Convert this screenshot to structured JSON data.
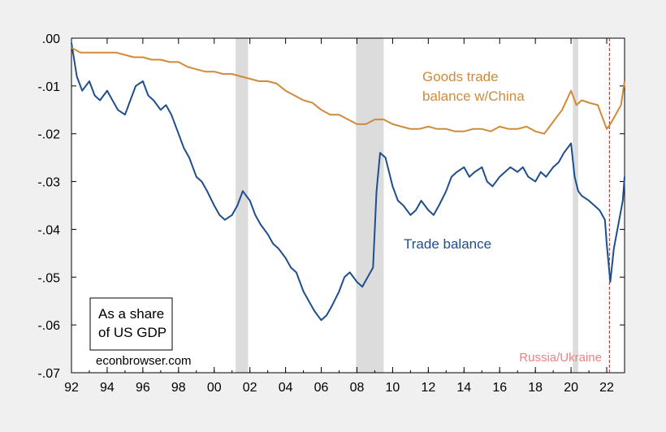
{
  "chart_data": {
    "type": "line",
    "title": "",
    "xlabel": "",
    "ylabel": "",
    "xlim": [
      1992.0,
      2023.0
    ],
    "ylim": [
      -0.07,
      0.0
    ],
    "x_tick_labels": [
      "92",
      "94",
      "96",
      "98",
      "00",
      "02",
      "04",
      "06",
      "08",
      "10",
      "12",
      "14",
      "16",
      "18",
      "20",
      "22"
    ],
    "x_tick_values": [
      1992,
      1994,
      1996,
      1998,
      2000,
      2002,
      2004,
      2006,
      2008,
      2010,
      2012,
      2014,
      2016,
      2018,
      2020,
      2022
    ],
    "y_tick_labels": [
      ".00",
      "-.01",
      "-.02",
      "-.03",
      "-.04",
      "-.05",
      "-.06",
      "-.07"
    ],
    "y_tick_values": [
      0.0,
      -0.01,
      -0.02,
      -0.03,
      -0.04,
      -0.05,
      -0.06,
      -0.07
    ],
    "recessions": [
      [
        2001.2,
        2001.9
      ],
      [
        2007.95,
        2009.5
      ],
      [
        2020.1,
        2020.4
      ]
    ],
    "event_line": {
      "x": 2022.15,
      "label": "Russia/Ukraine",
      "color": "#b22222"
    },
    "series": [
      {
        "name": "Trade balance",
        "label": "Trade balance",
        "color": "#1f4e8c",
        "x": [
          1992.0,
          1992.3,
          1992.6,
          1993.0,
          1993.3,
          1993.6,
          1994.0,
          1994.3,
          1994.6,
          1995.0,
          1995.3,
          1995.6,
          1996.0,
          1996.3,
          1996.6,
          1997.0,
          1997.3,
          1997.6,
          1998.0,
          1998.3,
          1998.6,
          1999.0,
          1999.3,
          1999.6,
          2000.0,
          2000.3,
          2000.6,
          2001.0,
          2001.3,
          2001.6,
          2002.0,
          2002.3,
          2002.6,
          2003.0,
          2003.3,
          2003.6,
          2004.0,
          2004.3,
          2004.6,
          2005.0,
          2005.3,
          2005.6,
          2006.0,
          2006.3,
          2006.6,
          2007.0,
          2007.3,
          2007.6,
          2008.0,
          2008.3,
          2008.6,
          2008.9,
          2009.1,
          2009.3,
          2009.6,
          2010.0,
          2010.3,
          2010.6,
          2011.0,
          2011.3,
          2011.6,
          2012.0,
          2012.3,
          2012.6,
          2013.0,
          2013.3,
          2013.6,
          2014.0,
          2014.3,
          2014.6,
          2015.0,
          2015.3,
          2015.6,
          2016.0,
          2016.3,
          2016.6,
          2017.0,
          2017.3,
          2017.6,
          2018.0,
          2018.3,
          2018.6,
          2019.0,
          2019.3,
          2019.6,
          2020.0,
          2020.2,
          2020.4,
          2020.6,
          2021.0,
          2021.3,
          2021.6,
          2021.9,
          2022.0,
          2022.2,
          2022.4,
          2022.7,
          2022.9,
          2023.0
        ],
        "values": [
          -0.001,
          -0.008,
          -0.011,
          -0.009,
          -0.012,
          -0.013,
          -0.011,
          -0.013,
          -0.015,
          -0.016,
          -0.013,
          -0.01,
          -0.009,
          -0.012,
          -0.013,
          -0.015,
          -0.014,
          -0.016,
          -0.02,
          -0.023,
          -0.025,
          -0.029,
          -0.03,
          -0.032,
          -0.035,
          -0.037,
          -0.038,
          -0.037,
          -0.035,
          -0.032,
          -0.034,
          -0.037,
          -0.039,
          -0.041,
          -0.043,
          -0.044,
          -0.046,
          -0.048,
          -0.049,
          -0.053,
          -0.055,
          -0.057,
          -0.059,
          -0.058,
          -0.056,
          -0.053,
          -0.05,
          -0.049,
          -0.051,
          -0.052,
          -0.05,
          -0.048,
          -0.032,
          -0.024,
          -0.025,
          -0.031,
          -0.034,
          -0.035,
          -0.037,
          -0.036,
          -0.034,
          -0.036,
          -0.037,
          -0.035,
          -0.032,
          -0.029,
          -0.028,
          -0.027,
          -0.029,
          -0.028,
          -0.027,
          -0.03,
          -0.031,
          -0.029,
          -0.028,
          -0.027,
          -0.028,
          -0.027,
          -0.029,
          -0.03,
          -0.028,
          -0.029,
          -0.027,
          -0.026,
          -0.024,
          -0.022,
          -0.029,
          -0.032,
          -0.033,
          -0.034,
          -0.035,
          -0.036,
          -0.038,
          -0.043,
          -0.051,
          -0.044,
          -0.038,
          -0.034,
          -0.029
        ]
      },
      {
        "name": "Goods trade balance w/China",
        "label_line1": "Goods trade",
        "label_line2": "balance w/China",
        "color": "#d08a3a",
        "x": [
          1992.0,
          1992.5,
          1993.0,
          1993.5,
          1994.0,
          1994.5,
          1995.0,
          1995.5,
          1996.0,
          1996.5,
          1997.0,
          1997.5,
          1998.0,
          1998.5,
          1999.0,
          1999.5,
          2000.0,
          2000.5,
          2001.0,
          2001.5,
          2002.0,
          2002.5,
          2003.0,
          2003.5,
          2004.0,
          2004.5,
          2005.0,
          2005.5,
          2006.0,
          2006.5,
          2007.0,
          2007.5,
          2008.0,
          2008.5,
          2009.0,
          2009.5,
          2010.0,
          2010.5,
          2011.0,
          2011.5,
          2012.0,
          2012.5,
          2013.0,
          2013.5,
          2014.0,
          2014.5,
          2015.0,
          2015.5,
          2016.0,
          2016.5,
          2017.0,
          2017.5,
          2018.0,
          2018.5,
          2019.0,
          2019.5,
          2020.0,
          2020.3,
          2020.6,
          2021.0,
          2021.5,
          2022.0,
          2022.2,
          2022.5,
          2022.8,
          2023.0
        ],
        "values": [
          -0.002,
          -0.003,
          -0.003,
          -0.003,
          -0.003,
          -0.003,
          -0.0035,
          -0.004,
          -0.004,
          -0.0045,
          -0.0045,
          -0.005,
          -0.005,
          -0.006,
          -0.0065,
          -0.007,
          -0.007,
          -0.0075,
          -0.0075,
          -0.008,
          -0.0085,
          -0.009,
          -0.009,
          -0.0095,
          -0.011,
          -0.012,
          -0.013,
          -0.0135,
          -0.015,
          -0.016,
          -0.016,
          -0.017,
          -0.018,
          -0.018,
          -0.017,
          -0.017,
          -0.018,
          -0.0185,
          -0.019,
          -0.019,
          -0.0185,
          -0.019,
          -0.019,
          -0.0195,
          -0.0195,
          -0.019,
          -0.019,
          -0.0195,
          -0.0185,
          -0.019,
          -0.019,
          -0.0185,
          -0.0195,
          -0.02,
          -0.0175,
          -0.015,
          -0.011,
          -0.014,
          -0.013,
          -0.0135,
          -0.014,
          -0.019,
          -0.018,
          -0.016,
          -0.014,
          -0.009
        ]
      }
    ],
    "annotation_box": {
      "line1": "As a share",
      "line2": "of US GDP"
    },
    "watermark": "econbrowser.com"
  }
}
